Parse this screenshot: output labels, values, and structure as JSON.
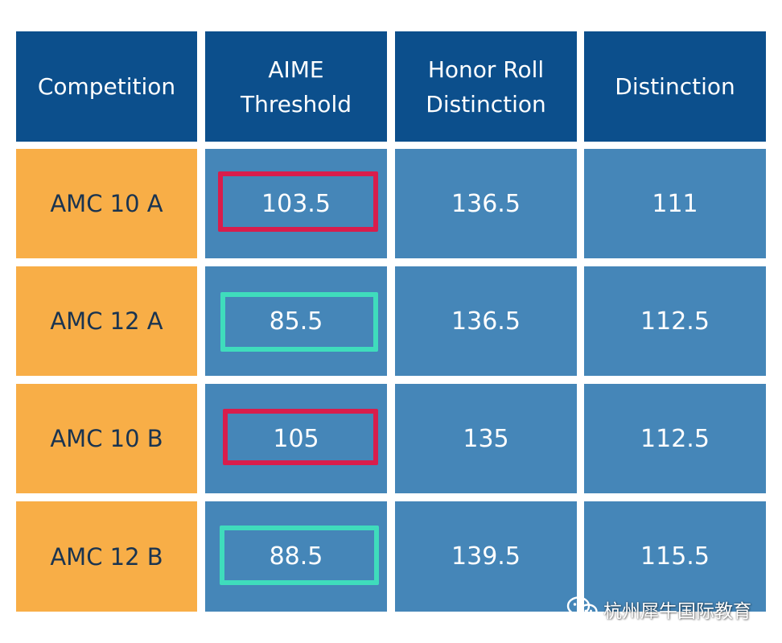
{
  "table": {
    "headers": [
      "Competition",
      "AIME Threshold",
      "Honor Roll Distinction",
      "Distinction"
    ],
    "rows": [
      {
        "competition": "AMC 10 A",
        "aime": "103.5",
        "honor_roll": "136.5",
        "distinction": "111"
      },
      {
        "competition": "AMC 12 A",
        "aime": "85.5",
        "honor_roll": "136.5",
        "distinction": "112.5"
      },
      {
        "competition": "AMC 10 B",
        "aime": "105",
        "honor_roll": "135",
        "distinction": "112.5"
      },
      {
        "competition": "AMC 12 B",
        "aime": "88.5",
        "honor_roll": "139.5",
        "distinction": "115.5"
      }
    ]
  },
  "highlights": [
    "red",
    "teal",
    "red",
    "teal"
  ],
  "colors": {
    "header_bg": "#0c4f8c",
    "competition_bg": "#f8ae47",
    "value_bg": "#4586b8",
    "highlight_red": "#d81d4c",
    "highlight_teal": "#3fdcbc"
  },
  "watermark": {
    "icon": "wechat-icon",
    "text": "杭州犀牛国际教育"
  }
}
